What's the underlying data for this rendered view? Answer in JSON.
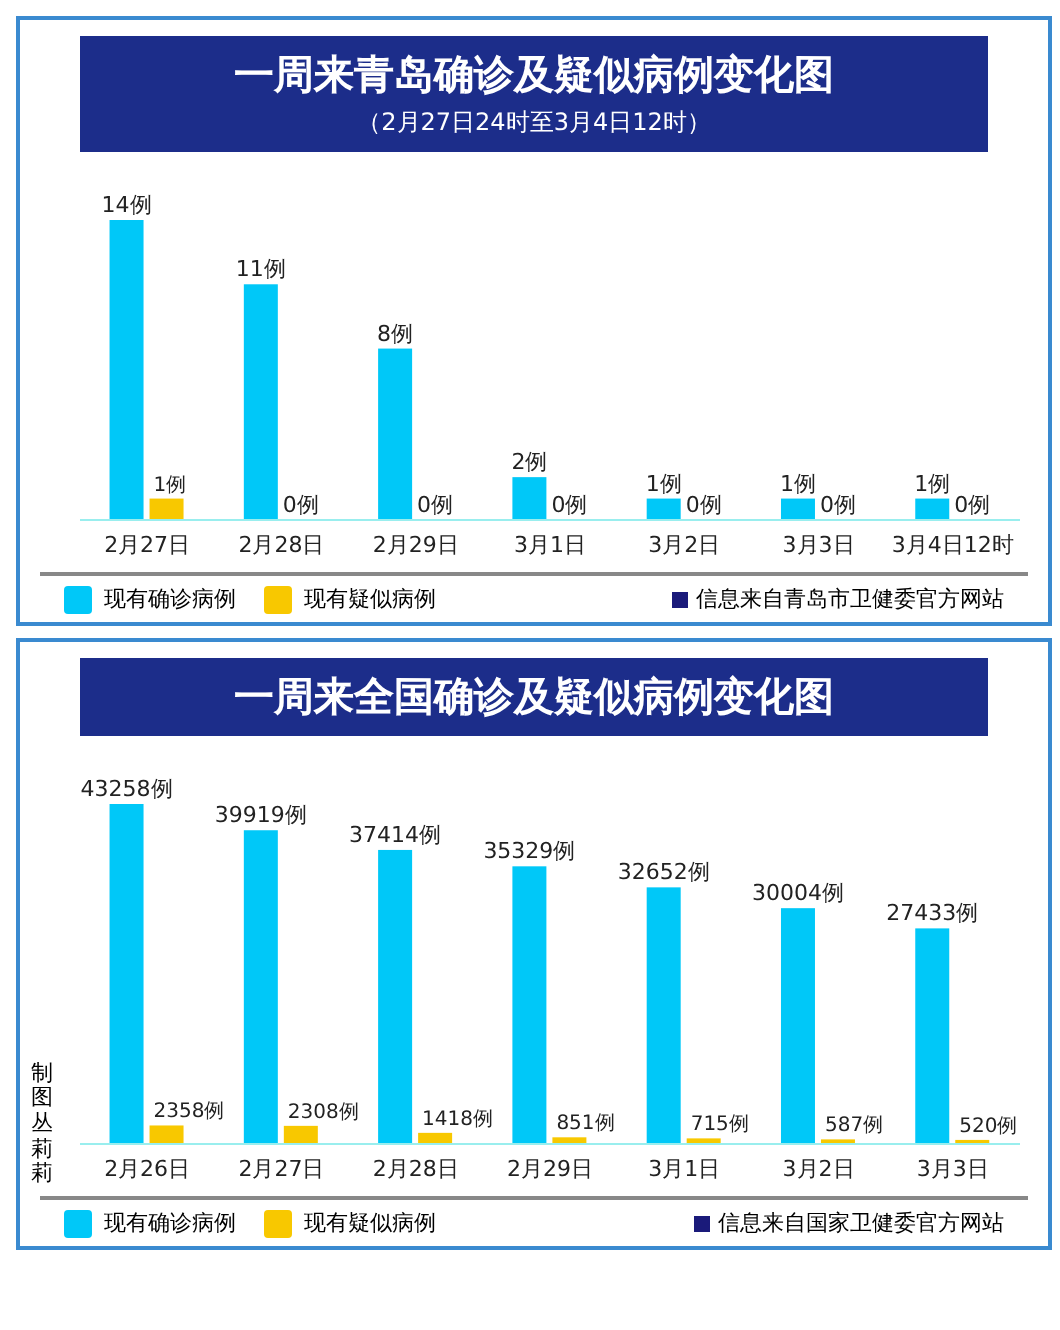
{
  "chart_data": [
    {
      "type": "bar",
      "title": "一周来青岛确诊及疑似病例变化图",
      "subtitle": "（2月27日24时至3月4日12时）",
      "categories": [
        "2月27日",
        "2月28日",
        "2月29日",
        "3月1日",
        "3月2日",
        "3月3日",
        "3月4日12时"
      ],
      "series": [
        {
          "name": "现有确诊病例",
          "color": "#00c8f8",
          "values": [
            14,
            11,
            8,
            2,
            1,
            1,
            1
          ],
          "value_labels": [
            "14例",
            "11例",
            "8例",
            "2例",
            "1例",
            "1例",
            "1例"
          ]
        },
        {
          "name": "现有疑似病例",
          "color": "#f8c800",
          "values": [
            1,
            0,
            0,
            0,
            0,
            0,
            0
          ],
          "value_labels": [
            "1例",
            "0例",
            "0例",
            "0例",
            "0例",
            "0例",
            "0例"
          ]
        }
      ],
      "legend": "bottom",
      "grid": false,
      "annotations": [
        "信息来自青岛市卫健委官方网站"
      ]
    },
    {
      "type": "bar",
      "title": "一周来全国确诊及疑似病例变化图",
      "categories": [
        "2月26日",
        "2月27日",
        "2月28日",
        "2月29日",
        "3月1日",
        "3月2日",
        "3月3日"
      ],
      "series": [
        {
          "name": "现有确诊病例",
          "color": "#00c8f8",
          "values": [
            43258,
            39919,
            37414,
            35329,
            32652,
            30004,
            27433
          ],
          "value_labels": [
            "43258例",
            "39919例",
            "37414例",
            "35329例",
            "32652例",
            "30004例",
            "27433例"
          ]
        },
        {
          "name": "现有疑似病例",
          "color": "#f8c800",
          "values": [
            2358,
            2308,
            1418,
            851,
            715,
            587,
            520
          ],
          "value_labels": [
            "2358例",
            "2308例",
            "1418例",
            "851例",
            "715例",
            "587例",
            "520例"
          ]
        }
      ],
      "legend": "bottom",
      "grid": false,
      "annotations": [
        "信息来自国家卫健委官方网站",
        "制图丛莉莉"
      ]
    }
  ]
}
